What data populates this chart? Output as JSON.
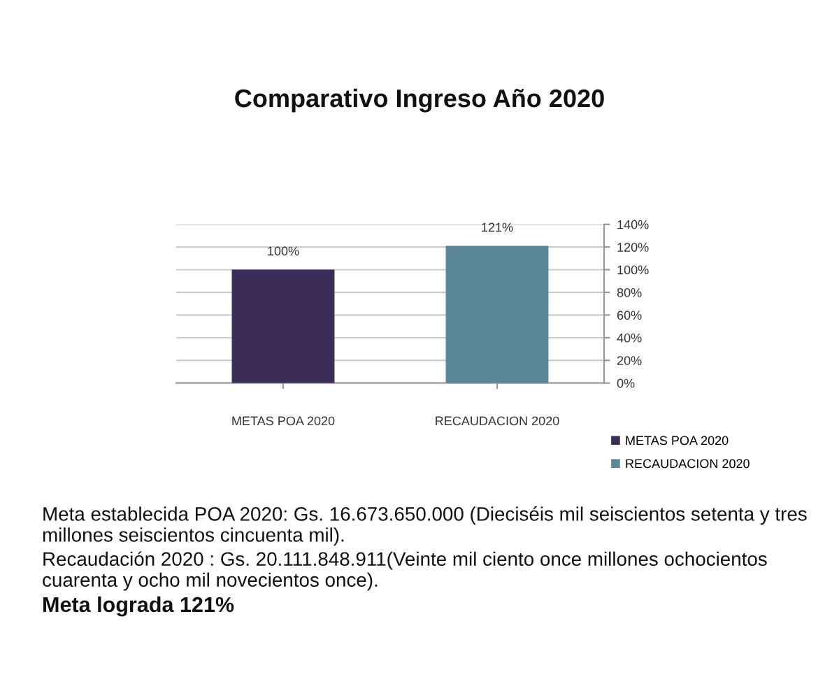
{
  "chart_data": {
    "type": "bar",
    "title": "Comparativo Ingreso Año 2020",
    "categories": [
      "METAS POA 2020",
      "RECAUDACION 2020"
    ],
    "stacked": true,
    "series": [
      {
        "name": "METAS POA 2020",
        "color": "#3b2d58",
        "values": [
          100,
          null
        ],
        "value_labels": [
          "100%",
          null
        ]
      },
      {
        "name": "RECAUDACION 2020",
        "color": "#5a8696",
        "values": [
          null,
          121
        ],
        "value_labels": [
          null,
          "121%"
        ]
      }
    ],
    "ylim": [
      0,
      140
    ],
    "yticks": [
      {
        "value": 0,
        "label": "0%"
      },
      {
        "value": 20,
        "label": "20%"
      },
      {
        "value": 40,
        "label": "40%"
      },
      {
        "value": 60,
        "label": "60%"
      },
      {
        "value": 80,
        "label": "80%"
      },
      {
        "value": 100,
        "label": "100%"
      },
      {
        "value": 120,
        "label": "120%"
      },
      {
        "value": 140,
        "label": "140%"
      }
    ],
    "grid": "y",
    "legend": "bottom right",
    "annotations": [
      "Meta establecida POA 2020: Gs. 16.673.650.000 (Dieciséis mil seiscientos setenta y tres millones seiscientos cincuenta mil).",
      "Recaudación 2020 : Gs. 20.111.848.911(Veinte mil ciento once millones ochocientos cuarenta y ocho mil novecientos once).",
      "Meta lograda 121%"
    ]
  }
}
